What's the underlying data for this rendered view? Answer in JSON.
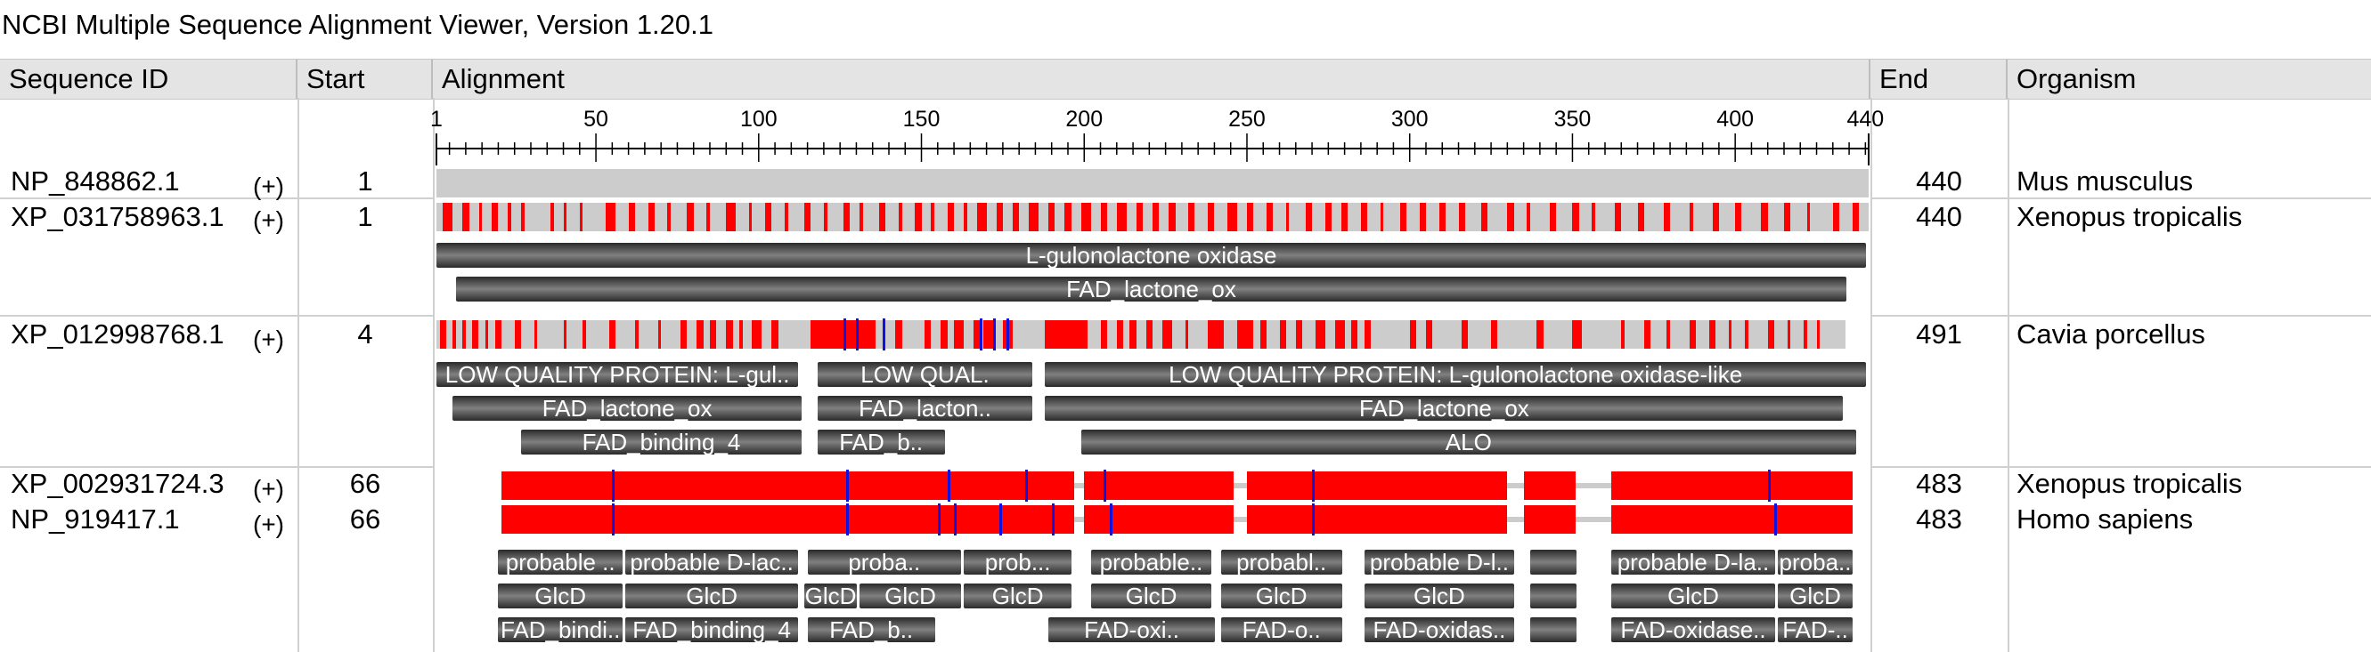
{
  "app_title": "NCBI Multiple Sequence Alignment Viewer, Version 1.20.1",
  "columns": {
    "sequence_id": "Sequence ID",
    "start": "Start",
    "alignment": "Alignment",
    "end": "End",
    "organism": "Organism"
  },
  "ruler": {
    "min": 1,
    "max": 441,
    "labels": [
      {
        "text": "1",
        "pos": 1
      },
      {
        "text": "50",
        "pos": 50
      },
      {
        "text": "100",
        "pos": 100
      },
      {
        "text": "150",
        "pos": 150
      },
      {
        "text": "200",
        "pos": 200
      },
      {
        "text": "250",
        "pos": 250
      },
      {
        "text": "300",
        "pos": 300
      },
      {
        "text": "350",
        "pos": 350
      },
      {
        "text": "400",
        "pos": 400
      },
      {
        "text": "440",
        "pos": 440
      }
    ]
  },
  "rows": [
    {
      "id": "NP_848862.1",
      "strand": "(+)",
      "start": "1",
      "end": "440",
      "organism": "Mus musculus",
      "track": {
        "from": 1,
        "to": 441,
        "segments": []
      }
    },
    {
      "id": "XP_031758963.1",
      "strand": "(+)",
      "start": "1",
      "end": "440",
      "organism": "Xenopus tropicalis",
      "track": {
        "from": 1,
        "to": 441,
        "segments": [
          [
            3,
            6
          ],
          [
            9,
            11
          ],
          [
            14,
            15
          ],
          [
            18,
            20
          ],
          [
            23,
            24
          ],
          [
            27,
            28
          ],
          [
            36,
            37
          ],
          [
            40,
            41
          ],
          [
            45,
            46
          ],
          [
            53,
            56
          ],
          [
            60,
            62
          ],
          [
            66,
            68
          ],
          [
            72,
            73
          ],
          [
            78,
            80
          ],
          [
            84,
            85
          ],
          [
            90,
            93
          ],
          [
            97,
            98
          ],
          [
            102,
            104
          ],
          [
            108,
            109
          ],
          [
            114,
            116
          ],
          [
            120,
            121
          ],
          [
            126,
            128
          ],
          [
            131,
            132
          ],
          [
            137,
            139
          ],
          [
            143,
            144
          ],
          [
            148,
            150
          ],
          [
            153,
            154
          ],
          [
            158,
            160
          ],
          [
            163,
            164
          ],
          [
            167,
            170
          ],
          [
            173,
            175
          ],
          [
            178,
            180
          ],
          [
            183,
            186
          ],
          [
            189,
            191
          ],
          [
            194,
            196
          ],
          [
            199,
            202
          ],
          [
            205,
            207
          ],
          [
            210,
            213
          ],
          [
            216,
            218
          ],
          [
            221,
            223
          ],
          [
            226,
            228
          ],
          [
            232,
            234
          ],
          [
            238,
            240
          ],
          [
            244,
            247
          ],
          [
            250,
            252
          ],
          [
            256,
            258
          ],
          [
            262,
            263
          ],
          [
            268,
            270
          ],
          [
            274,
            276
          ],
          [
            279,
            281
          ],
          [
            285,
            287
          ],
          [
            291,
            292
          ],
          [
            297,
            299
          ],
          [
            303,
            305
          ],
          [
            309,
            311
          ],
          [
            315,
            317
          ],
          [
            322,
            324
          ],
          [
            330,
            332
          ],
          [
            336,
            337
          ],
          [
            343,
            345
          ],
          [
            350,
            352
          ],
          [
            356,
            357
          ],
          [
            363,
            365
          ],
          [
            370,
            372
          ],
          [
            378,
            380
          ],
          [
            386,
            387
          ],
          [
            393,
            395
          ],
          [
            400,
            402
          ],
          [
            408,
            410
          ],
          [
            415,
            417
          ],
          [
            422,
            423
          ],
          [
            430,
            432
          ],
          [
            436,
            438
          ]
        ]
      },
      "features": [
        {
          "label": "L-gulonolactone oxidase",
          "from": 1,
          "to": 441,
          "lane": 0
        },
        {
          "label": "FAD_lactone_ox",
          "from": 7,
          "to": 435,
          "lane": 1
        }
      ]
    },
    {
      "id": "XP_012998768.1",
      "strand": "(+)",
      "start": "4",
      "end": "491",
      "organism": "Cavia porcellus",
      "track": {
        "from": 1,
        "to": 434,
        "segments": [
          [
            2,
            4
          ],
          [
            6,
            7
          ],
          [
            9,
            10
          ],
          [
            12,
            14
          ],
          [
            16,
            17
          ],
          [
            19,
            21
          ],
          [
            25,
            27
          ],
          [
            31,
            32
          ],
          [
            40,
            41
          ],
          [
            46,
            47
          ],
          [
            54,
            56
          ],
          [
            62,
            63
          ],
          [
            69,
            70
          ],
          [
            76,
            78
          ],
          [
            81,
            83
          ],
          [
            85,
            87
          ],
          [
            90,
            92
          ],
          [
            94,
            95
          ],
          [
            98,
            101
          ],
          [
            104,
            106
          ],
          [
            116,
            136
          ],
          [
            142,
            144
          ],
          [
            151,
            153
          ],
          [
            156,
            158
          ],
          [
            160,
            163
          ],
          [
            166,
            168
          ],
          [
            169,
            172
          ],
          [
            175,
            178
          ],
          [
            188,
            201
          ],
          [
            205,
            207
          ],
          [
            210,
            212
          ],
          [
            214,
            216
          ],
          [
            219,
            221
          ],
          [
            224,
            227
          ],
          [
            231,
            232
          ],
          [
            238,
            243
          ],
          [
            247,
            252
          ],
          [
            254,
            256
          ],
          [
            260,
            262
          ],
          [
            265,
            267
          ],
          [
            271,
            274
          ],
          [
            277,
            280
          ],
          [
            282,
            284
          ],
          [
            286,
            288
          ],
          [
            300,
            302
          ],
          [
            305,
            307
          ],
          [
            316,
            318
          ],
          [
            325,
            327
          ],
          [
            339,
            341
          ],
          [
            350,
            353
          ],
          [
            365,
            366
          ],
          [
            372,
            374
          ],
          [
            379,
            380
          ],
          [
            386,
            388
          ],
          [
            392,
            394
          ],
          [
            398,
            399
          ],
          [
            403,
            404
          ],
          [
            410,
            412
          ],
          [
            416,
            417
          ],
          [
            421,
            422
          ],
          [
            425,
            426
          ]
        ]
      },
      "features": [
        {
          "label": "LOW QUALITY PROTEIN: L-gul..",
          "from": 1,
          "to": 113,
          "lane": 0
        },
        {
          "label": "LOW QUAL.",
          "from": 118,
          "to": 185,
          "lane": 0
        },
        {
          "label": "LOW QUALITY PROTEIN: L-gulonolactone oxidase-like",
          "from": 188,
          "to": 441,
          "lane": 0
        },
        {
          "label": "FAD_lactone_ox",
          "from": 6,
          "to": 114,
          "lane": 1
        },
        {
          "label": "FAD_lacton..",
          "from": 118,
          "to": 185,
          "lane": 1
        },
        {
          "label": "FAD_lactone_ox",
          "from": 188,
          "to": 434,
          "lane": 1
        },
        {
          "label": "FAD_binding_4",
          "from": 27,
          "to": 114,
          "lane": 2
        },
        {
          "label": "FAD_b..",
          "from": 118,
          "to": 158,
          "lane": 2
        },
        {
          "label": "ALO",
          "from": 199,
          "to": 438,
          "lane": 2
        }
      ]
    },
    {
      "id": "XP_002931724.3",
      "strand": "(+)",
      "start": "66",
      "end": "483",
      "organism": "Xenopus tropicalis",
      "track": {
        "from": 21,
        "to": 436,
        "segments": [
          [
            21,
            197
          ],
          [
            200,
            246
          ],
          [
            250,
            330
          ],
          [
            335,
            351
          ],
          [
            362,
            436
          ]
        ]
      }
    },
    {
      "id": "NP_919417.1",
      "strand": "(+)",
      "start": "66",
      "end": "483",
      "organism": "Homo sapiens",
      "track": {
        "from": 21,
        "to": 436,
        "segments": [
          [
            21,
            197
          ],
          [
            200,
            246
          ],
          [
            250,
            330
          ],
          [
            335,
            351
          ],
          [
            362,
            436
          ]
        ]
      },
      "features": [
        {
          "label": "probable ..",
          "from": 20,
          "to": 59,
          "lane": 0
        },
        {
          "label": "probable D-lac..",
          "from": 59,
          "to": 113,
          "lane": 0
        },
        {
          "label": "proba..",
          "from": 115,
          "to": 163,
          "lane": 0
        },
        {
          "label": "prob...",
          "from": 163,
          "to": 197,
          "lane": 0
        },
        {
          "label": "probable..",
          "from": 202,
          "to": 240,
          "lane": 0
        },
        {
          "label": "probabl..",
          "from": 242,
          "to": 280,
          "lane": 0
        },
        {
          "label": "probable D-l..",
          "from": 286,
          "to": 333,
          "lane": 0
        },
        {
          "label": "",
          "from": 337,
          "to": 352,
          "lane": 0
        },
        {
          "label": "probable D-la..",
          "from": 362,
          "to": 413,
          "lane": 0
        },
        {
          "label": "proba..",
          "from": 413,
          "to": 437,
          "lane": 0
        },
        {
          "label": "GlcD",
          "from": 20,
          "to": 59,
          "lane": 1
        },
        {
          "label": "GlcD",
          "from": 59,
          "to": 113,
          "lane": 1
        },
        {
          "label": "GlcD",
          "from": 114,
          "to": 131,
          "lane": 1
        },
        {
          "label": "GlcD",
          "from": 131,
          "to": 163,
          "lane": 1
        },
        {
          "label": "GlcD",
          "from": 163,
          "to": 197,
          "lane": 1
        },
        {
          "label": "GlcD",
          "from": 202,
          "to": 240,
          "lane": 1
        },
        {
          "label": "GlcD",
          "from": 242,
          "to": 280,
          "lane": 1
        },
        {
          "label": "GlcD",
          "from": 286,
          "to": 333,
          "lane": 1
        },
        {
          "label": "",
          "from": 337,
          "to": 352,
          "lane": 1
        },
        {
          "label": "GlcD",
          "from": 362,
          "to": 413,
          "lane": 1
        },
        {
          "label": "GlcD",
          "from": 413,
          "to": 437,
          "lane": 1
        },
        {
          "label": "FAD_bindi..",
          "from": 20,
          "to": 59,
          "lane": 2
        },
        {
          "label": "FAD_binding_4",
          "from": 59,
          "to": 113,
          "lane": 2
        },
        {
          "label": "FAD_b..",
          "from": 115,
          "to": 155,
          "lane": 2
        },
        {
          "label": "FAD-oxi..",
          "from": 189,
          "to": 241,
          "lane": 2
        },
        {
          "label": "FAD-o..",
          "from": 242,
          "to": 280,
          "lane": 2
        },
        {
          "label": "FAD-oxidas..",
          "from": 286,
          "to": 333,
          "lane": 2
        },
        {
          "label": "",
          "from": 337,
          "to": 352,
          "lane": 2
        },
        {
          "label": "FAD-oxidase..",
          "from": 362,
          "to": 413,
          "lane": 2
        },
        {
          "label": "FAD-..",
          "from": 413,
          "to": 437,
          "lane": 2
        }
      ]
    }
  ],
  "colors": {
    "match_gray": "#cccccc",
    "mismatch_red": "#ff0000",
    "insertion_blue": "#1111dd",
    "header_bg": "#e4e4e4"
  }
}
